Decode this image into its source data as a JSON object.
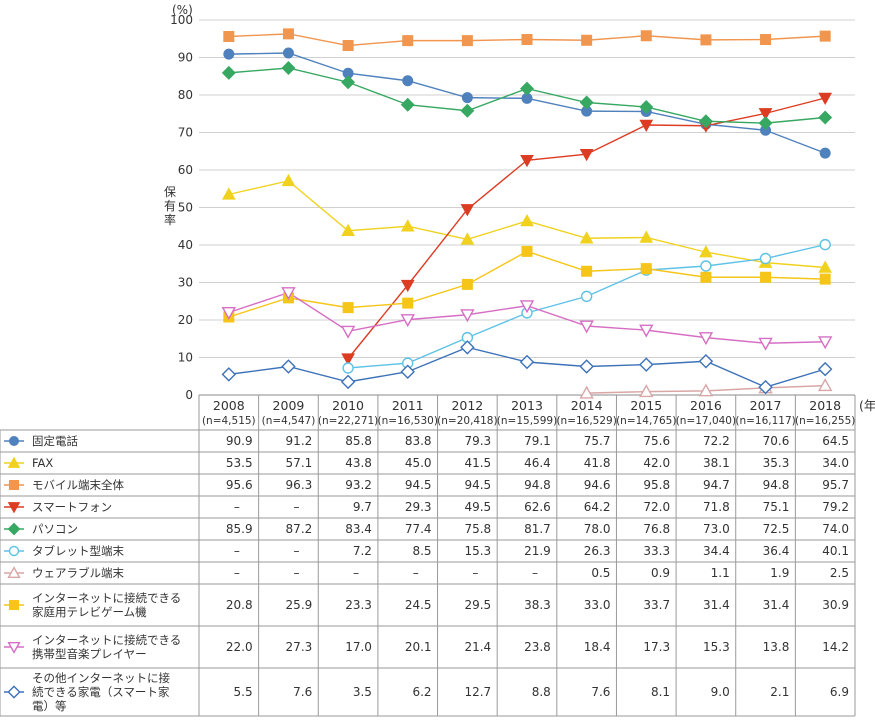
{
  "chart_data": {
    "type": "line",
    "title": "",
    "ylabel": "保有率",
    "y_unit": "(%)",
    "x_unit": "(年)",
    "ylim": [
      0,
      100
    ],
    "yticks": [
      0,
      10,
      20,
      30,
      40,
      50,
      60,
      70,
      80,
      90,
      100
    ],
    "categories": [
      "2008",
      "2009",
      "2010",
      "2011",
      "2012",
      "2013",
      "2014",
      "2015",
      "2016",
      "2017",
      "2018"
    ],
    "sample_sizes": [
      "(n=4,515)",
      "(n=4,547)",
      "(n=22,271)",
      "(n=16,530)",
      "(n=20,418)",
      "(n=15,599)",
      "(n=16,529)",
      "(n=14,765)",
      "(n=17,040)",
      "(n=16,117)",
      "(n=16,255)"
    ],
    "series": [
      {
        "name": "固定電話",
        "color": "#4f81bd",
        "marker": "circle",
        "values": [
          90.9,
          91.2,
          85.8,
          83.8,
          79.3,
          79.1,
          75.7,
          75.6,
          72.2,
          70.6,
          64.5
        ]
      },
      {
        "name": "FAX",
        "color": "#f0d21e",
        "marker": "triangle-up",
        "values": [
          53.5,
          57.1,
          43.8,
          45.0,
          41.5,
          46.4,
          41.8,
          42.0,
          38.1,
          35.3,
          34.0
        ]
      },
      {
        "name": "モバイル端末全体",
        "color": "#f0964f",
        "marker": "square",
        "values": [
          95.6,
          96.3,
          93.2,
          94.5,
          94.5,
          94.8,
          94.6,
          95.8,
          94.7,
          94.8,
          95.7
        ]
      },
      {
        "name": "スマートフォン",
        "color": "#dc3c22",
        "marker": "triangle-down",
        "values": [
          null,
          null,
          9.7,
          29.3,
          49.5,
          62.6,
          64.2,
          72.0,
          71.8,
          75.1,
          79.2
        ]
      },
      {
        "name": "パソコン",
        "color": "#37a862",
        "marker": "diamond",
        "values": [
          85.9,
          87.2,
          83.4,
          77.4,
          75.8,
          81.7,
          78.0,
          76.8,
          73.0,
          72.5,
          74.0
        ]
      },
      {
        "name": "タブレット型端末",
        "color": "#5ec2e6",
        "marker": "circle-open",
        "values": [
          null,
          null,
          7.2,
          8.5,
          15.3,
          21.9,
          26.3,
          33.3,
          34.4,
          36.4,
          40.1
        ]
      },
      {
        "name": "ウェアラブル端末",
        "color": "#d9a6a6",
        "marker": "triangle-up-open",
        "values": [
          null,
          null,
          null,
          null,
          null,
          null,
          0.5,
          0.9,
          1.1,
          1.9,
          2.5
        ]
      },
      {
        "name": "インターネットに接続できる家庭用テレビゲーム機",
        "label_lines": [
          "インターネットに接続できる",
          "家庭用テレビゲーム機"
        ],
        "color": "#f5c518",
        "marker": "square",
        "values": [
          20.8,
          25.9,
          23.3,
          24.5,
          29.5,
          38.3,
          33.0,
          33.7,
          31.4,
          31.4,
          30.9
        ]
      },
      {
        "name": "インターネットに接続できる携帯型音楽プレイヤー",
        "label_lines": [
          "インターネットに接続できる",
          "携帯型音楽プレイヤー"
        ],
        "color": "#d66fc4",
        "marker": "triangle-down-open",
        "values": [
          22.0,
          27.3,
          17.0,
          20.1,
          21.4,
          23.8,
          18.4,
          17.3,
          15.3,
          13.8,
          14.2
        ]
      },
      {
        "name": "その他インターネットに接続できる家電（スマート家電）等",
        "label_lines": [
          "その他インターネットに接",
          "続できる家電（スマート家",
          "電）等"
        ],
        "color": "#3d72b8",
        "marker": "diamond-open",
        "values": [
          5.5,
          7.6,
          3.5,
          6.2,
          12.7,
          8.8,
          7.6,
          8.1,
          9.0,
          2.1,
          6.9
        ]
      }
    ],
    "missing_symbol": "–",
    "grid": true
  }
}
